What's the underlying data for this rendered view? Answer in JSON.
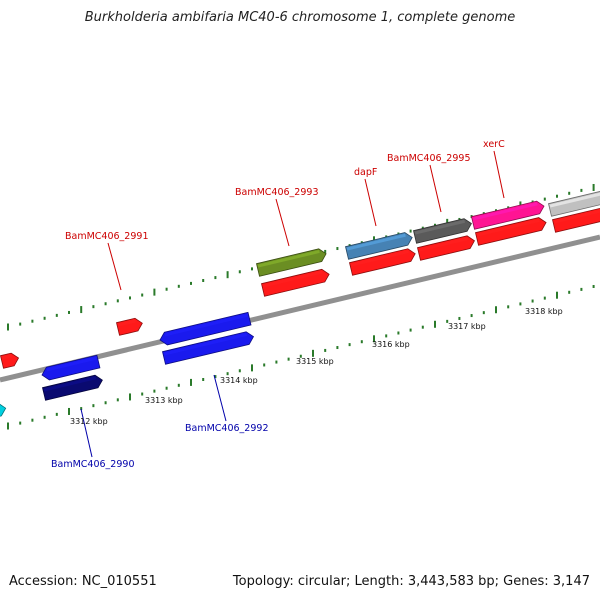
{
  "title": "Burkholderia ambifaria MC40-6 chromosome 1, complete genome",
  "footer": {
    "accession": "Accession: NC_010551",
    "stats": "Topology: circular; Length: 3,443,583 bp; Genes: 3,147"
  },
  "colors": {
    "backbone": "#909090",
    "tick": "#2a7a2a",
    "label_top": "#cc0000",
    "label_bottom": "#0000aa",
    "red_gene": "#ff1a1a",
    "blue_gene": "#1a1aee",
    "navy_gene": "#0a0a70",
    "green_gene": "#6b8e23",
    "steelblue_gene": "#4682b4",
    "gray_gene": "#5a5a5a",
    "magenta_gene": "#ff1493",
    "silver_gene": "#c0c0c0",
    "cyan_gene": "#00d0e0"
  },
  "scale_labels": [
    "3312 kbp",
    "3313 kbp",
    "3314 kbp",
    "3315 kbp",
    "3316 kbp",
    "3317 kbp",
    "3318 kbp"
  ],
  "gene_labels": [
    {
      "text": "BamMC406_2991",
      "side": "top"
    },
    {
      "text": "BamMC406_2993",
      "side": "top"
    },
    {
      "text": "dapF",
      "side": "top"
    },
    {
      "text": "BamMC406_2995",
      "side": "top"
    },
    {
      "text": "xerC",
      "side": "top"
    },
    {
      "text": "BamMC406_2992",
      "side": "bottom"
    },
    {
      "text": "BamMC406_2990",
      "side": "bottom"
    }
  ]
}
